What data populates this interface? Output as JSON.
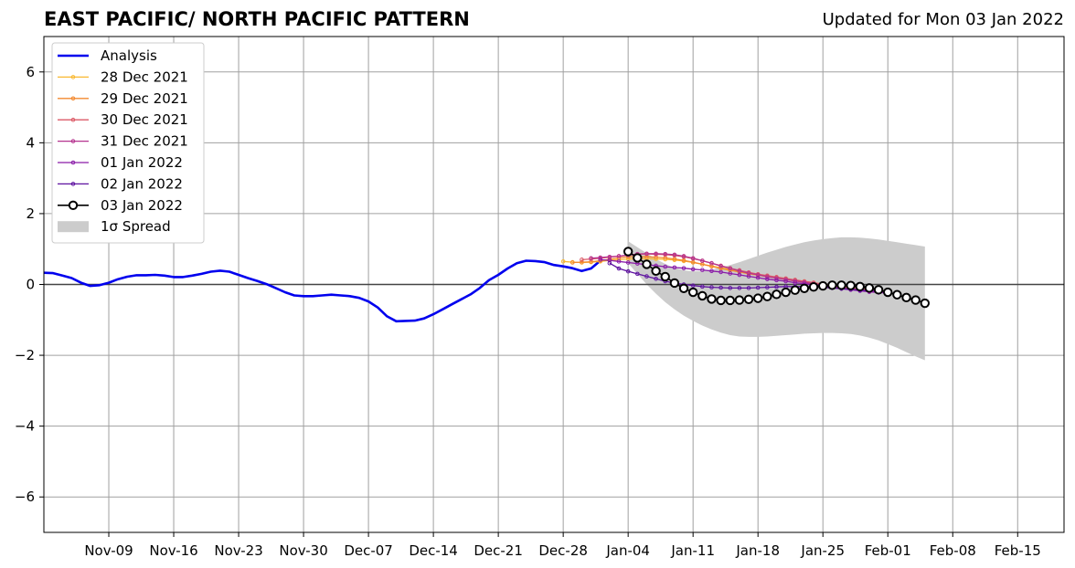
{
  "header": {
    "title": "EAST PACIFIC/ NORTH PACIFIC PATTERN",
    "updated": "Updated for Mon 03 Jan 2022"
  },
  "chart_data": {
    "type": "line",
    "title": "EAST PACIFIC/ NORTH PACIFIC PATTERN",
    "xlabel": "",
    "ylabel": "",
    "grid": true,
    "legend_position": "top-left",
    "xlim": [
      "2021-11-02",
      "2022-02-20"
    ],
    "ylim": [
      -7,
      7
    ],
    "yticks": [
      -6,
      -4,
      -2,
      0,
      2,
      4,
      6
    ],
    "ytick_labels": [
      "−6",
      "−4",
      "−2",
      "0",
      "2",
      "4",
      "6"
    ],
    "xticks": [
      "2021-11-09",
      "2021-11-16",
      "2021-11-23",
      "2021-11-30",
      "2021-12-07",
      "2021-12-14",
      "2021-12-21",
      "2021-12-28",
      "2022-01-04",
      "2022-01-11",
      "2022-01-18",
      "2022-01-25",
      "2022-02-01",
      "2022-02-08",
      "2022-02-15"
    ],
    "xtick_labels": [
      "Nov-09",
      "Nov-16",
      "Nov-23",
      "Nov-30",
      "Dec-07",
      "Dec-14",
      "Dec-21",
      "Dec-28",
      "Jan-04",
      "Jan-11",
      "Jan-18",
      "Jan-25",
      "Feb-01",
      "Feb-08",
      "Feb-15"
    ],
    "analysis": {
      "name": "Analysis",
      "color": "#0000ee",
      "start": "2021-11-02",
      "values": [
        0.33,
        0.32,
        0.25,
        0.18,
        0.05,
        -0.04,
        -0.02,
        0.05,
        0.15,
        0.22,
        0.26,
        0.26,
        0.27,
        0.25,
        0.21,
        0.21,
        0.25,
        0.3,
        0.36,
        0.39,
        0.36,
        0.27,
        0.18,
        0.1,
        0.01,
        -0.1,
        -0.22,
        -0.31,
        -0.33,
        -0.33,
        -0.31,
        -0.29,
        -0.31,
        -0.33,
        -0.38,
        -0.48,
        -0.65,
        -0.9,
        -1.04,
        -1.03,
        -1.02,
        -0.96,
        -0.84,
        -0.7,
        -0.56,
        -0.42,
        -0.28,
        -0.1,
        0.12,
        0.27,
        0.45,
        0.6,
        0.67,
        0.66,
        0.63,
        0.55,
        0.51,
        0.46,
        0.38,
        0.45,
        0.67
      ]
    },
    "series": [
      {
        "name": "28 Dec 2021",
        "color": "#f9b830",
        "start": "2021-12-28",
        "values": [
          0.65,
          0.63,
          0.62,
          0.63,
          0.65,
          0.68,
          0.7,
          0.72,
          0.73,
          0.73,
          0.72,
          0.71,
          0.69,
          0.66,
          0.62,
          0.57,
          0.52,
          0.47,
          0.42,
          0.37,
          0.32,
          0.27,
          0.23,
          0.2,
          0.16,
          0.12,
          0.08,
          0.05,
          0.01,
          -0.03,
          -0.06,
          -0.09,
          -0.12,
          -0.14,
          -0.16,
          -0.18
        ]
      },
      {
        "name": "29 Dec 2021",
        "color": "#f3892f",
        "start": "2021-12-29",
        "values": [
          0.62,
          0.63,
          0.64,
          0.67,
          0.71,
          0.75,
          0.78,
          0.79,
          0.78,
          0.77,
          0.75,
          0.72,
          0.68,
          0.63,
          0.57,
          0.51,
          0.45,
          0.4,
          0.35,
          0.3,
          0.26,
          0.22,
          0.18,
          0.14,
          0.1,
          0.06,
          0.02,
          -0.02,
          -0.06,
          -0.1,
          -0.13,
          -0.16,
          -0.18,
          -0.2,
          -0.21
        ]
      },
      {
        "name": "30 Dec 2021",
        "color": "#dc5a67",
        "start": "2021-12-30",
        "values": [
          0.7,
          0.72,
          0.74,
          0.77,
          0.8,
          0.83,
          0.85,
          0.86,
          0.85,
          0.84,
          0.82,
          0.78,
          0.73,
          0.67,
          0.6,
          0.53,
          0.46,
          0.4,
          0.34,
          0.29,
          0.25,
          0.21,
          0.17,
          0.13,
          0.09,
          0.05,
          0.01,
          -0.03,
          -0.07,
          -0.1,
          -0.13,
          -0.16,
          -0.18,
          -0.19
        ]
      },
      {
        "name": "31 Dec 2021",
        "color": "#b5338f",
        "start": "2021-12-31",
        "values": [
          0.74,
          0.76,
          0.78,
          0.8,
          0.83,
          0.86,
          0.87,
          0.87,
          0.86,
          0.84,
          0.8,
          0.74,
          0.67,
          0.6,
          0.52,
          0.45,
          0.38,
          0.32,
          0.27,
          0.22,
          0.18,
          0.14,
          0.1,
          0.06,
          0.02,
          -0.02,
          -0.06,
          -0.1,
          -0.13,
          -0.16,
          -0.19,
          -0.21,
          -0.22
        ]
      },
      {
        "name": "01 Jan 2022",
        "color": "#8a1ba8",
        "start": "2022-01-01",
        "values": [
          0.7,
          0.68,
          0.65,
          0.62,
          0.59,
          0.56,
          0.53,
          0.5,
          0.48,
          0.46,
          0.43,
          0.41,
          0.38,
          0.35,
          0.31,
          0.27,
          0.23,
          0.19,
          0.15,
          0.12,
          0.09,
          0.05,
          0.02,
          -0.01,
          -0.05,
          -0.09,
          -0.12,
          -0.15,
          -0.18,
          -0.21,
          -0.23,
          -0.24
        ]
      },
      {
        "name": "02 Jan 2022",
        "color": "#5e12a0",
        "start": "2022-01-02",
        "values": [
          0.6,
          0.45,
          0.37,
          0.3,
          0.23,
          0.16,
          0.09,
          0.04,
          0.0,
          -0.03,
          -0.06,
          -0.08,
          -0.09,
          -0.1,
          -0.1,
          -0.1,
          -0.09,
          -0.08,
          -0.07,
          -0.06,
          -0.06,
          -0.06,
          -0.07,
          -0.08,
          -0.1,
          -0.12,
          -0.14,
          -0.16,
          -0.17,
          -0.18,
          -0.18
        ]
      },
      {
        "name": "03 Jan 2022",
        "color": "#000000",
        "start": "2022-01-04",
        "values": [
          0.93,
          0.75,
          0.57,
          0.38,
          0.22,
          0.04,
          -0.11,
          -0.22,
          -0.32,
          -0.41,
          -0.45,
          -0.45,
          -0.44,
          -0.42,
          -0.39,
          -0.34,
          -0.28,
          -0.22,
          -0.16,
          -0.11,
          -0.07,
          -0.04,
          -0.02,
          -0.02,
          -0.03,
          -0.06,
          -0.1,
          -0.15,
          -0.22,
          -0.29,
          -0.37,
          -0.44,
          -0.53
        ]
      }
    ],
    "spread": {
      "name": "1σ Spread",
      "color": "#cccccc",
      "start": "2022-01-04",
      "upper": [
        1.22,
        1.05,
        0.88,
        0.72,
        0.58,
        0.47,
        0.4,
        0.37,
        0.38,
        0.42,
        0.48,
        0.55,
        0.63,
        0.72,
        0.81,
        0.9,
        0.98,
        1.06,
        1.13,
        1.19,
        1.24,
        1.28,
        1.31,
        1.33,
        1.33,
        1.32,
        1.3,
        1.27,
        1.23,
        1.19,
        1.15,
        1.11,
        1.07
      ],
      "lower": [
        0.6,
        0.3,
        0.0,
        -0.26,
        -0.5,
        -0.7,
        -0.88,
        -1.03,
        -1.16,
        -1.27,
        -1.36,
        -1.43,
        -1.47,
        -1.48,
        -1.48,
        -1.47,
        -1.45,
        -1.43,
        -1.41,
        -1.39,
        -1.38,
        -1.37,
        -1.37,
        -1.38,
        -1.4,
        -1.44,
        -1.5,
        -1.58,
        -1.68,
        -1.79,
        -1.91,
        -2.03,
        -2.14
      ]
    }
  }
}
